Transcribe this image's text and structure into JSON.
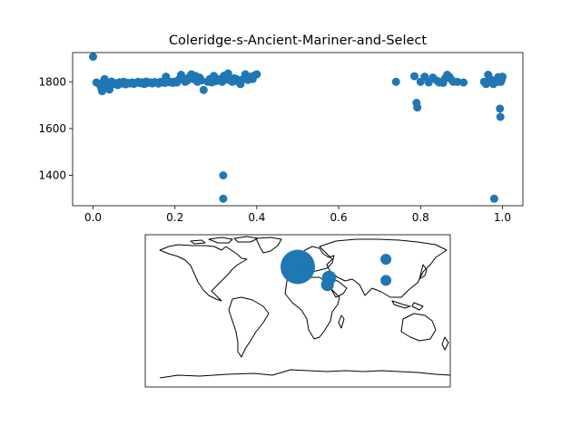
{
  "chart_data": [
    {
      "type": "scatter",
      "title": "Coleridge-s-Ancient-Mariner-and-Select",
      "xlabel": "",
      "ylabel": "",
      "xlim": [
        -0.05,
        1.05
      ],
      "ylim": [
        1270,
        1925
      ],
      "xticks": [
        0.0,
        0.2,
        0.4,
        0.6,
        0.8,
        1.0
      ],
      "xtick_labels": [
        "0.0",
        "0.2",
        "0.4",
        "0.6",
        "0.8",
        "1.0"
      ],
      "yticks": [
        1400,
        1600,
        1800
      ],
      "ytick_labels": [
        "1400",
        "1600",
        "1800"
      ],
      "grid": false,
      "color": "#1f77b4",
      "points": [
        [
          0.0,
          1907
        ],
        [
          0.008,
          1797
        ],
        [
          0.015,
          1790
        ],
        [
          0.02,
          1772
        ],
        [
          0.022,
          1760
        ],
        [
          0.025,
          1800
        ],
        [
          0.028,
          1812
        ],
        [
          0.032,
          1795
        ],
        [
          0.036,
          1782
        ],
        [
          0.04,
          1767
        ],
        [
          0.045,
          1801
        ],
        [
          0.05,
          1790
        ],
        [
          0.055,
          1794
        ],
        [
          0.06,
          1786
        ],
        [
          0.065,
          1798
        ],
        [
          0.07,
          1792
        ],
        [
          0.075,
          1800
        ],
        [
          0.08,
          1789
        ],
        [
          0.085,
          1795
        ],
        [
          0.09,
          1793
        ],
        [
          0.095,
          1797
        ],
        [
          0.1,
          1791
        ],
        [
          0.105,
          1796
        ],
        [
          0.11,
          1800
        ],
        [
          0.115,
          1794
        ],
        [
          0.12,
          1798
        ],
        [
          0.125,
          1790
        ],
        [
          0.13,
          1801
        ],
        [
          0.135,
          1795
        ],
        [
          0.14,
          1797
        ],
        [
          0.145,
          1793
        ],
        [
          0.15,
          1799
        ],
        [
          0.155,
          1796
        ],
        [
          0.16,
          1792
        ],
        [
          0.165,
          1800
        ],
        [
          0.17,
          1797
        ],
        [
          0.175,
          1795
        ],
        [
          0.178,
          1822
        ],
        [
          0.185,
          1798
        ],
        [
          0.19,
          1800
        ],
        [
          0.195,
          1795
        ],
        [
          0.2,
          1801
        ],
        [
          0.205,
          1797
        ],
        [
          0.21,
          1810
        ],
        [
          0.215,
          1830
        ],
        [
          0.22,
          1815
        ],
        [
          0.225,
          1800
        ],
        [
          0.23,
          1805
        ],
        [
          0.235,
          1820
        ],
        [
          0.24,
          1832
        ],
        [
          0.245,
          1812
        ],
        [
          0.25,
          1825
        ],
        [
          0.255,
          1800
        ],
        [
          0.26,
          1818
        ],
        [
          0.265,
          1806
        ],
        [
          0.27,
          1765
        ],
        [
          0.28,
          1800
        ],
        [
          0.285,
          1812
        ],
        [
          0.29,
          1797
        ],
        [
          0.295,
          1825
        ],
        [
          0.3,
          1803
        ],
        [
          0.31,
          1812
        ],
        [
          0.315,
          1800
        ],
        [
          0.318,
          1400
        ],
        [
          0.318,
          1300
        ],
        [
          0.32,
          1826
        ],
        [
          0.325,
          1810
        ],
        [
          0.33,
          1836
        ],
        [
          0.335,
          1806
        ],
        [
          0.34,
          1800
        ],
        [
          0.345,
          1815
        ],
        [
          0.35,
          1812
        ],
        [
          0.355,
          1800
        ],
        [
          0.36,
          1790
        ],
        [
          0.365,
          1810
        ],
        [
          0.372,
          1832
        ],
        [
          0.378,
          1808
        ],
        [
          0.385,
          1822
        ],
        [
          0.39,
          1812
        ],
        [
          0.395,
          1828
        ],
        [
          0.4,
          1832
        ],
        [
          0.74,
          1800
        ],
        [
          0.785,
          1824
        ],
        [
          0.79,
          1710
        ],
        [
          0.792,
          1690
        ],
        [
          0.8,
          1800
        ],
        [
          0.81,
          1822
        ],
        [
          0.82,
          1797
        ],
        [
          0.83,
          1818
        ],
        [
          0.84,
          1805
        ],
        [
          0.845,
          1797
        ],
        [
          0.85,
          1800
        ],
        [
          0.855,
          1795
        ],
        [
          0.86,
          1815
        ],
        [
          0.865,
          1830
        ],
        [
          0.87,
          1822
        ],
        [
          0.875,
          1810
        ],
        [
          0.88,
          1800
        ],
        [
          0.89,
          1800
        ],
        [
          0.905,
          1797
        ],
        [
          0.955,
          1800
        ],
        [
          0.96,
          1790
        ],
        [
          0.965,
          1830
        ],
        [
          0.97,
          1812
        ],
        [
          0.975,
          1797
        ],
        [
          0.978,
          1790
        ],
        [
          0.98,
          1300
        ],
        [
          0.983,
          1805
        ],
        [
          0.986,
          1800
        ],
        [
          0.99,
          1820
        ],
        [
          0.992,
          1800
        ],
        [
          0.994,
          1685
        ],
        [
          0.995,
          1650
        ],
        [
          0.996,
          1800
        ],
        [
          0.998,
          1810
        ],
        [
          1.0,
          1822
        ]
      ]
    },
    {
      "type": "scatter",
      "title": "",
      "projection": "plate-carree",
      "xlim": [
        -180,
        180
      ],
      "ylim": [
        -90,
        90
      ],
      "color": "#1f77b4",
      "points": [
        {
          "lon": 0,
          "lat": 52,
          "size": 640
        },
        {
          "lon": 12,
          "lat": 54,
          "size": 90
        },
        {
          "lon": 37,
          "lat": 39,
          "size": 110
        },
        {
          "lon": 35,
          "lat": 31,
          "size": 90
        },
        {
          "lon": 104,
          "lat": 61,
          "size": 65
        },
        {
          "lon": 104,
          "lat": 36,
          "size": 65
        }
      ]
    }
  ]
}
